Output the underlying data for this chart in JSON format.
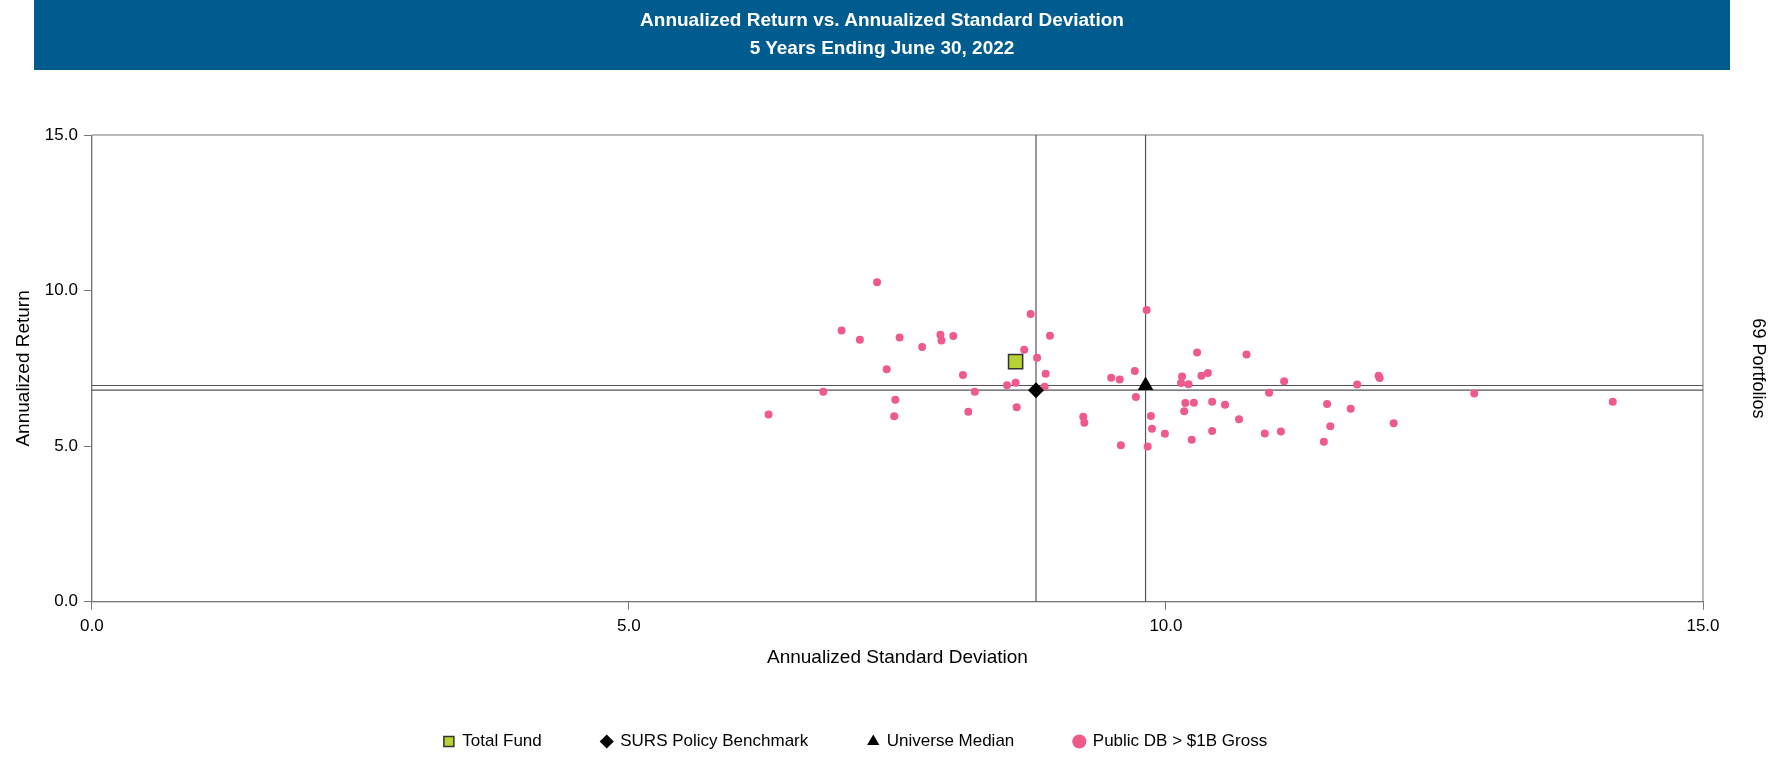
{
  "chart_data": {
    "type": "scatter",
    "title": "Annualized Return vs. Annualized Standard Deviation",
    "subtitle": "5 Years Ending June 30, 2022",
    "xlabel": "Annualized Standard Deviation",
    "ylabel": "Annualized Return",
    "xlim": [
      0,
      15
    ],
    "ylim": [
      0,
      15
    ],
    "xticks": [
      {
        "value": 0,
        "label": "0.0"
      },
      {
        "value": 5,
        "label": "5.0"
      },
      {
        "value": 10,
        "label": "10.0"
      },
      {
        "value": 15,
        "label": "15.0"
      }
    ],
    "yticks": [
      {
        "value": 0,
        "label": "0.0"
      },
      {
        "value": 5,
        "label": "5.0"
      },
      {
        "value": 10,
        "label": "10.0"
      },
      {
        "value": 15,
        "label": "15.0"
      }
    ],
    "grid": false,
    "legend": "bottom",
    "annotations": [
      "69 Portfolios"
    ],
    "ref_lines": [
      {
        "axis": "x",
        "value": 8.79,
        "color": "#555555"
      },
      {
        "axis": "x",
        "value": 9.81,
        "color": "#555555"
      },
      {
        "axis": "y",
        "value": 6.95,
        "color": "#555555"
      },
      {
        "axis": "y",
        "value": 6.8,
        "color": "#555555"
      }
    ],
    "series": [
      {
        "name": "Total Fund",
        "color": "#b5d334",
        "marker": "square",
        "x": [
          8.6
        ],
        "values": [
          7.72
        ]
      },
      {
        "name": "SURS Policy Benchmark",
        "color": "#000000",
        "marker": "diamond",
        "x": [
          8.79
        ],
        "values": [
          6.8
        ]
      },
      {
        "name": "Universe Median",
        "color": "#000000",
        "marker": "triangle",
        "x": [
          9.81
        ],
        "values": [
          6.95
        ]
      },
      {
        "name": "Public DB > $1B Gross",
        "color": "#ee5b8a",
        "marker": "circle",
        "x": [
          6.3,
          6.81,
          6.98,
          7.15,
          7.31,
          7.4,
          7.52,
          7.48,
          7.47,
          7.73,
          7.9,
          7.91,
          8.02,
          8.11,
          8.22,
          8.16,
          8.52,
          8.6,
          8.61,
          8.68,
          8.74,
          8.8,
          8.92,
          8.88,
          8.87,
          9.23,
          9.24,
          9.49,
          9.57,
          9.58,
          9.71,
          9.72,
          9.82,
          9.86,
          9.87,
          9.83,
          9.99,
          10.15,
          10.14,
          10.21,
          10.29,
          10.33,
          10.39,
          10.18,
          10.26,
          10.17,
          10.24,
          10.43,
          10.43,
          10.55,
          10.75,
          10.68,
          10.92,
          10.96,
          11.1,
          11.07,
          11.5,
          11.53,
          11.47,
          11.72,
          11.78,
          11.98,
          11.99,
          12.12,
          12.87,
          14.16
        ],
        "values": [
          6.02,
          6.75,
          8.72,
          8.42,
          10.27,
          7.47,
          8.49,
          6.49,
          5.96,
          8.19,
          8.58,
          8.4,
          8.54,
          7.29,
          6.75,
          6.11,
          6.96,
          7.04,
          6.25,
          8.1,
          9.25,
          7.84,
          8.55,
          7.33,
          6.91,
          5.95,
          5.75,
          7.2,
          7.14,
          5.03,
          7.42,
          6.58,
          9.38,
          5.97,
          5.56,
          4.99,
          5.4,
          7.24,
          7.03,
          6.99,
          8.01,
          7.26,
          7.35,
          6.39,
          6.4,
          6.12,
          5.21,
          6.43,
          5.49,
          6.33,
          7.95,
          5.87,
          5.41,
          6.72,
          7.09,
          5.47,
          6.36,
          5.64,
          5.14,
          6.2,
          6.98,
          7.26,
          7.19,
          5.74,
          6.69,
          6.43
        ]
      }
    ]
  }
}
